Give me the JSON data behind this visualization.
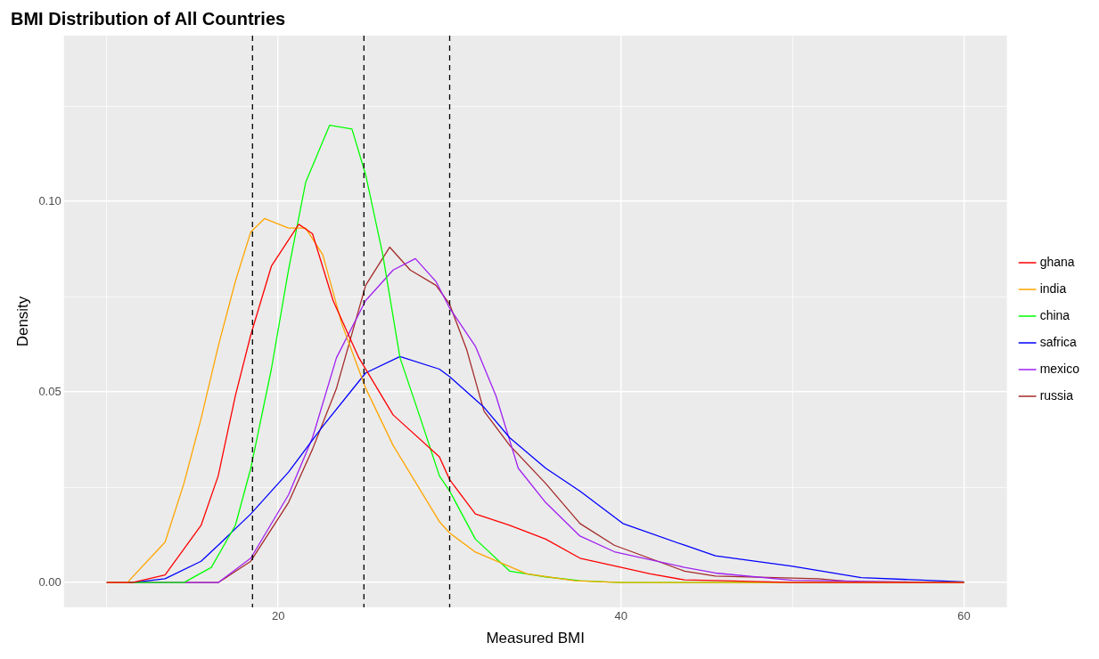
{
  "chart_data": {
    "type": "line",
    "title": "BMI Distribution of All Countries",
    "xlabel": "Measured BMI",
    "ylabel": "Density",
    "xlim": [
      7.5,
      62.5
    ],
    "ylim": [
      -0.0065,
      0.1435
    ],
    "xticks": [
      {
        "value": 10,
        "label": null
      },
      20,
      {
        "value": 30,
        "label": null
      },
      40,
      {
        "value": 50,
        "label": null
      },
      60
    ],
    "yticks": [
      {
        "value": 0,
        "label": "0.00"
      },
      {
        "value": 0.025,
        "label": null
      },
      {
        "value": 0.05,
        "label": "0.05"
      },
      {
        "value": 0.075,
        "label": null
      },
      {
        "value": 0.1,
        "label": "0.10"
      },
      {
        "value": 0.125,
        "label": null
      }
    ],
    "grid": true,
    "legend": "right",
    "marker": "none",
    "line_style": "solid",
    "ref_lines": [
      {
        "axis": "x",
        "value": 18.5,
        "color": "#000000",
        "line_style": "dashed"
      },
      {
        "axis": "x",
        "value": 25,
        "color": "#000000",
        "line_style": "dashed"
      },
      {
        "axis": "x",
        "value": 30,
        "color": "#000000",
        "line_style": "dashed"
      }
    ],
    "series": [
      {
        "name": "ghana",
        "color": "#ff0000",
        "x": [
          10,
          11.5,
          13.4,
          15.5,
          16.5,
          17.5,
          18.4,
          19.6,
          21.2,
          22,
          23.2,
          24.7,
          26.7,
          29.4,
          30,
          31.5,
          33.5,
          35.6,
          37.6,
          39.6,
          41.7,
          43.7,
          46,
          50,
          60
        ],
        "values": [
          0,
          0,
          0.002,
          0.015,
          0.028,
          0.049,
          0.065,
          0.083,
          0.094,
          0.0915,
          0.074,
          0.059,
          0.044,
          0.033,
          0.027,
          0.018,
          0.015,
          0.0114,
          0.0064,
          0.0044,
          0.0023,
          0.0007,
          0.0005,
          0,
          0
        ]
      },
      {
        "name": "india",
        "color": "#ffa500",
        "x": [
          10,
          11.2,
          13.4,
          14.5,
          15.5,
          16.5,
          17.5,
          18.4,
          19.2,
          20.6,
          21.6,
          22.6,
          23.7,
          25.1,
          26.7,
          29.4,
          30,
          31.5,
          34.5,
          37.3,
          40,
          60
        ],
        "values": [
          0,
          0,
          0.0106,
          0.026,
          0.043,
          0.062,
          0.079,
          0.092,
          0.0955,
          0.093,
          0.093,
          0.086,
          0.068,
          0.051,
          0.036,
          0.016,
          0.013,
          0.008,
          0.0023,
          0.0005,
          0,
          0
        ]
      },
      {
        "name": "china",
        "color": "#00ff00",
        "x": [
          10,
          14.5,
          16.1,
          17.5,
          18.4,
          19.6,
          20.6,
          21.6,
          23,
          24.3,
          25.1,
          26.1,
          27.1,
          28.3,
          29.4,
          30,
          31.5,
          33.5,
          35.6,
          37.6,
          40,
          60
        ],
        "values": [
          0,
          0,
          0.004,
          0.015,
          0.03,
          0.056,
          0.082,
          0.105,
          0.12,
          0.119,
          0.107,
          0.086,
          0.059,
          0.043,
          0.028,
          0.024,
          0.0114,
          0.003,
          0.0015,
          0.0005,
          0,
          0
        ]
      },
      {
        "name": "safrica",
        "color": "#0000ff",
        "x": [
          10,
          11.5,
          13.4,
          15.5,
          16.5,
          18.4,
          20.6,
          22.6,
          25.1,
          27.1,
          29.4,
          30,
          32,
          33.5,
          35.6,
          37.6,
          40.1,
          43.7,
          45.5,
          50,
          54,
          60
        ],
        "values": [
          0,
          0,
          0.001,
          0.0056,
          0.0098,
          0.018,
          0.029,
          0.041,
          0.055,
          0.0593,
          0.056,
          0.054,
          0.046,
          0.038,
          0.03,
          0.024,
          0.0155,
          0.0098,
          0.007,
          0.0043,
          0.0013,
          0.0002
        ]
      },
      {
        "name": "mexico",
        "color": "#a020f0",
        "x": [
          10,
          13.5,
          16.5,
          18.4,
          20.6,
          22,
          23.4,
          25.1,
          26.7,
          28,
          29.2,
          30,
          31.5,
          32.7,
          34,
          35.6,
          37.6,
          39.6,
          43.7,
          45.5,
          50,
          60
        ],
        "values": [
          0,
          0,
          0,
          0.0064,
          0.023,
          0.038,
          0.059,
          0.074,
          0.082,
          0.085,
          0.079,
          0.072,
          0.062,
          0.049,
          0.03,
          0.021,
          0.0122,
          0.0081,
          0.004,
          0.0025,
          0.0006,
          0
        ]
      },
      {
        "name": "russia",
        "color": "#a52a2a",
        "x": [
          10,
          13.5,
          16.5,
          18.4,
          20.6,
          22,
          23.4,
          25.1,
          26.5,
          27.7,
          29.2,
          30,
          31,
          32,
          33.5,
          35.6,
          37.6,
          39.6,
          43.7,
          45.5,
          51.5,
          54,
          60
        ],
        "values": [
          0,
          0,
          0,
          0.0056,
          0.021,
          0.035,
          0.051,
          0.078,
          0.088,
          0.082,
          0.078,
          0.073,
          0.061,
          0.045,
          0.036,
          0.026,
          0.0155,
          0.0098,
          0.003,
          0.0017,
          0.001,
          0,
          0
        ]
      }
    ]
  }
}
